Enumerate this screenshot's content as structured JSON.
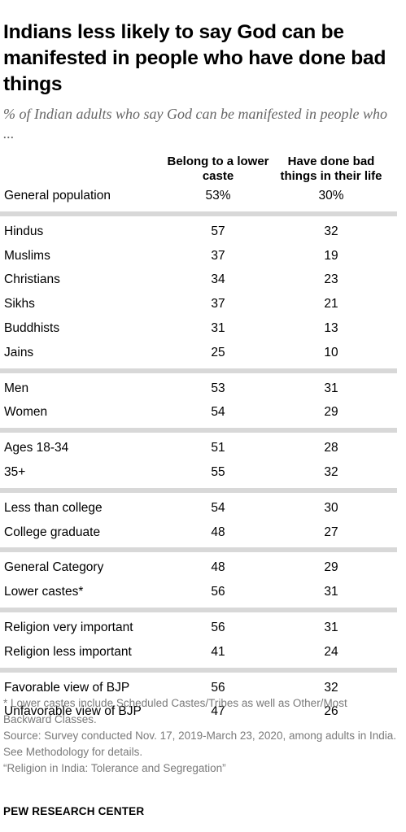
{
  "title": "Indians less likely to say God can be manifested in people who have done bad things",
  "subtitle": "% of Indian adults who say God can be manifested in people who ...",
  "chart_data": {
    "type": "table",
    "columns": [
      "Belong to a lower caste",
      "Have done bad things in their life"
    ],
    "groups": [
      [
        {
          "label": "General population",
          "v1": "53%",
          "v2": "30%"
        }
      ],
      [
        {
          "label": "Hindus",
          "v1": "57",
          "v2": "32"
        },
        {
          "label": "Muslims",
          "v1": "37",
          "v2": "19"
        },
        {
          "label": "Christians",
          "v1": "34",
          "v2": "23"
        },
        {
          "label": "Sikhs",
          "v1": "37",
          "v2": "21"
        },
        {
          "label": "Buddhists",
          "v1": "31",
          "v2": "13"
        },
        {
          "label": "Jains",
          "v1": "25",
          "v2": "10"
        }
      ],
      [
        {
          "label": "Men",
          "v1": "53",
          "v2": "31"
        },
        {
          "label": "Women",
          "v1": "54",
          "v2": "29"
        }
      ],
      [
        {
          "label": "Ages 18-34",
          "v1": "51",
          "v2": "28"
        },
        {
          "label": "35+",
          "v1": "55",
          "v2": "32"
        }
      ],
      [
        {
          "label": "Less than college",
          "v1": "54",
          "v2": "30"
        },
        {
          "label": "College graduate",
          "v1": "48",
          "v2": "27"
        }
      ],
      [
        {
          "label": "General Category",
          "v1": "48",
          "v2": "29"
        },
        {
          "label": "Lower castes*",
          "v1": "56",
          "v2": "31"
        }
      ],
      [
        {
          "label": "Religion very important",
          "v1": "56",
          "v2": "31"
        },
        {
          "label": "Religion less important",
          "v1": "41",
          "v2": "24"
        }
      ],
      [
        {
          "label": "Favorable view of BJP",
          "v1": "56",
          "v2": "32"
        },
        {
          "label": "Unfavorable view of BJP",
          "v1": "47",
          "v2": "26"
        }
      ]
    ]
  },
  "notes": [
    "* Lower castes include Scheduled Castes/Tribes as well as Other/Most Backward Classes.",
    "Source: Survey conducted Nov. 17, 2019-March 23, 2020, among adults in India. See Methodology for details.",
    "“Religion in India: Tolerance and Segregation”"
  ],
  "brand": "PEW RESEARCH CENTER"
}
